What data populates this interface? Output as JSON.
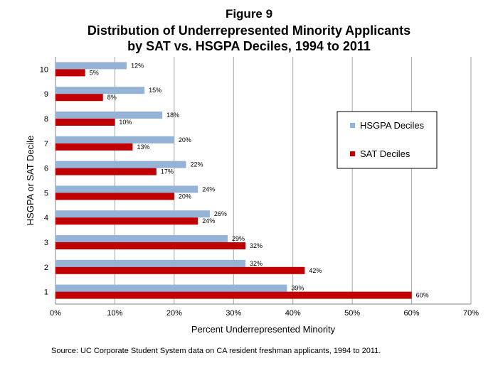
{
  "figure_label": "Figure 9",
  "source_note": "Source:  UC Corporate Student System data on CA resident freshman applicants, 1994 to 2011.",
  "colors": {
    "hsgpa": "#95b3d7",
    "sat": "#c00000",
    "grid": "#a6a6a6",
    "axis": "#868686"
  },
  "chart_data": {
    "type": "bar",
    "orientation": "horizontal",
    "title": "Distribution of Underrepresented Minority Applicants by SAT vs. HSGPA Deciles, 1994 to 2011",
    "title_lines": [
      "Distribution of Underrepresented Minority Applicants",
      "by SAT vs. HSGPA Deciles, 1994 to 2011"
    ],
    "xlabel": "Percent Underrepresented Minority",
    "ylabel": "HSGPA or SAT Decile",
    "categories": [
      "1",
      "2",
      "3",
      "4",
      "5",
      "6",
      "7",
      "8",
      "9",
      "10"
    ],
    "series": [
      {
        "name": "HSGPA Deciles",
        "values": [
          39,
          32,
          29,
          26,
          24,
          22,
          20,
          18,
          15,
          12
        ],
        "labels": [
          "39%",
          "32%",
          "29%",
          "26%",
          "24%",
          "22%",
          "20%",
          "18%",
          "15%",
          "12%"
        ]
      },
      {
        "name": "SAT Deciles",
        "values": [
          60,
          42,
          32,
          24,
          20,
          17,
          13,
          10,
          8,
          5
        ],
        "labels": [
          "60%",
          "42%",
          "32%",
          "24%",
          "20%",
          "17%",
          "13%",
          "10%",
          "8%",
          "5%"
        ]
      }
    ],
    "xlim": [
      0,
      70
    ],
    "xticks": [
      "0%",
      "10%",
      "20%",
      "30%",
      "40%",
      "50%",
      "60%",
      "70%"
    ],
    "grid": true,
    "legend_position": "right"
  }
}
